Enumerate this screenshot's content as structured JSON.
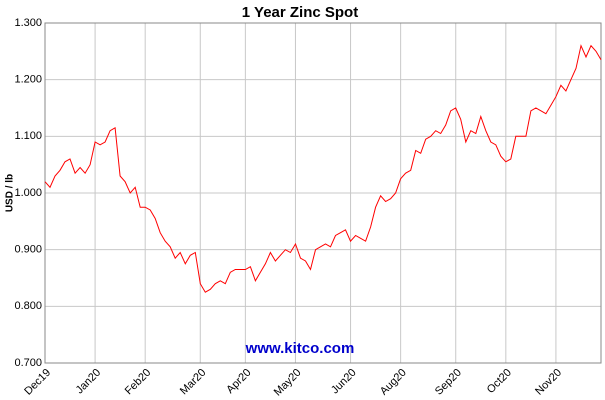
{
  "chart_data": {
    "type": "line",
    "title": "1 Year Zinc Spot",
    "y_label": "USD / lb",
    "watermark": "www.kitco.com",
    "categories": [
      "Dec19",
      null,
      null,
      null,
      null,
      null,
      null,
      null,
      null,
      null,
      "Jan20",
      null,
      null,
      null,
      null,
      null,
      null,
      null,
      null,
      null,
      "Feb20",
      null,
      null,
      null,
      null,
      null,
      null,
      null,
      null,
      null,
      null,
      "Mar20",
      null,
      null,
      null,
      null,
      null,
      null,
      null,
      null,
      "Apr20",
      null,
      null,
      null,
      null,
      null,
      null,
      null,
      null,
      null,
      "May20",
      null,
      null,
      null,
      null,
      null,
      null,
      null,
      null,
      null,
      null,
      "Jun20",
      null,
      null,
      null,
      null,
      null,
      null,
      null,
      null,
      null,
      "Aug20",
      null,
      null,
      null,
      null,
      null,
      null,
      null,
      null,
      null,
      null,
      "Sep20",
      null,
      null,
      null,
      null,
      null,
      null,
      null,
      null,
      null,
      "Oct20",
      null,
      null,
      null,
      null,
      null,
      null,
      null,
      null,
      null,
      "Nov20",
      null,
      null,
      null,
      null,
      null,
      null,
      null,
      null,
      null
    ],
    "series": [
      {
        "name": "Zinc",
        "color": "#ff0000",
        "values": [
          1.02,
          1.01,
          1.03,
          1.04,
          1.055,
          1.06,
          1.035,
          1.045,
          1.035,
          1.05,
          1.09,
          1.085,
          1.09,
          1.11,
          1.115,
          1.03,
          1.02,
          1.0,
          1.01,
          0.975,
          0.975,
          0.97,
          0.955,
          0.93,
          0.915,
          0.905,
          0.885,
          0.895,
          0.875,
          0.89,
          0.895,
          0.84,
          0.825,
          0.83,
          0.84,
          0.845,
          0.84,
          0.86,
          0.865,
          0.865,
          0.865,
          0.87,
          0.845,
          0.86,
          0.875,
          0.895,
          0.88,
          0.89,
          0.9,
          0.895,
          0.91,
          0.885,
          0.88,
          0.865,
          0.9,
          0.905,
          0.91,
          0.905,
          0.925,
          0.93,
          0.935,
          0.915,
          0.925,
          0.92,
          0.915,
          0.94,
          0.975,
          0.995,
          0.985,
          0.99,
          1.0,
          1.025,
          1.035,
          1.04,
          1.075,
          1.07,
          1.095,
          1.1,
          1.11,
          1.105,
          1.12,
          1.145,
          1.15,
          1.13,
          1.09,
          1.11,
          1.105,
          1.135,
          1.11,
          1.09,
          1.085,
          1.065,
          1.055,
          1.06,
          1.1,
          1.1,
          1.1,
          1.145,
          1.15,
          1.145,
          1.14,
          1.155,
          1.17,
          1.19,
          1.18,
          1.2,
          1.22,
          1.26,
          1.24,
          1.26,
          1.25,
          1.235
        ]
      }
    ],
    "ylim": [
      0.7,
      1.3
    ],
    "yticks": [
      {
        "value": 0.7,
        "label": "0.700"
      },
      {
        "value": 0.8,
        "label": "0.800"
      },
      {
        "value": 0.9,
        "label": "0.900"
      },
      {
        "value": 1.0,
        "label": "1.000"
      },
      {
        "value": 1.1,
        "label": "1.100"
      },
      {
        "value": 1.2,
        "label": "1.200"
      },
      {
        "value": 1.3,
        "label": "1.300"
      }
    ],
    "grid": true
  }
}
